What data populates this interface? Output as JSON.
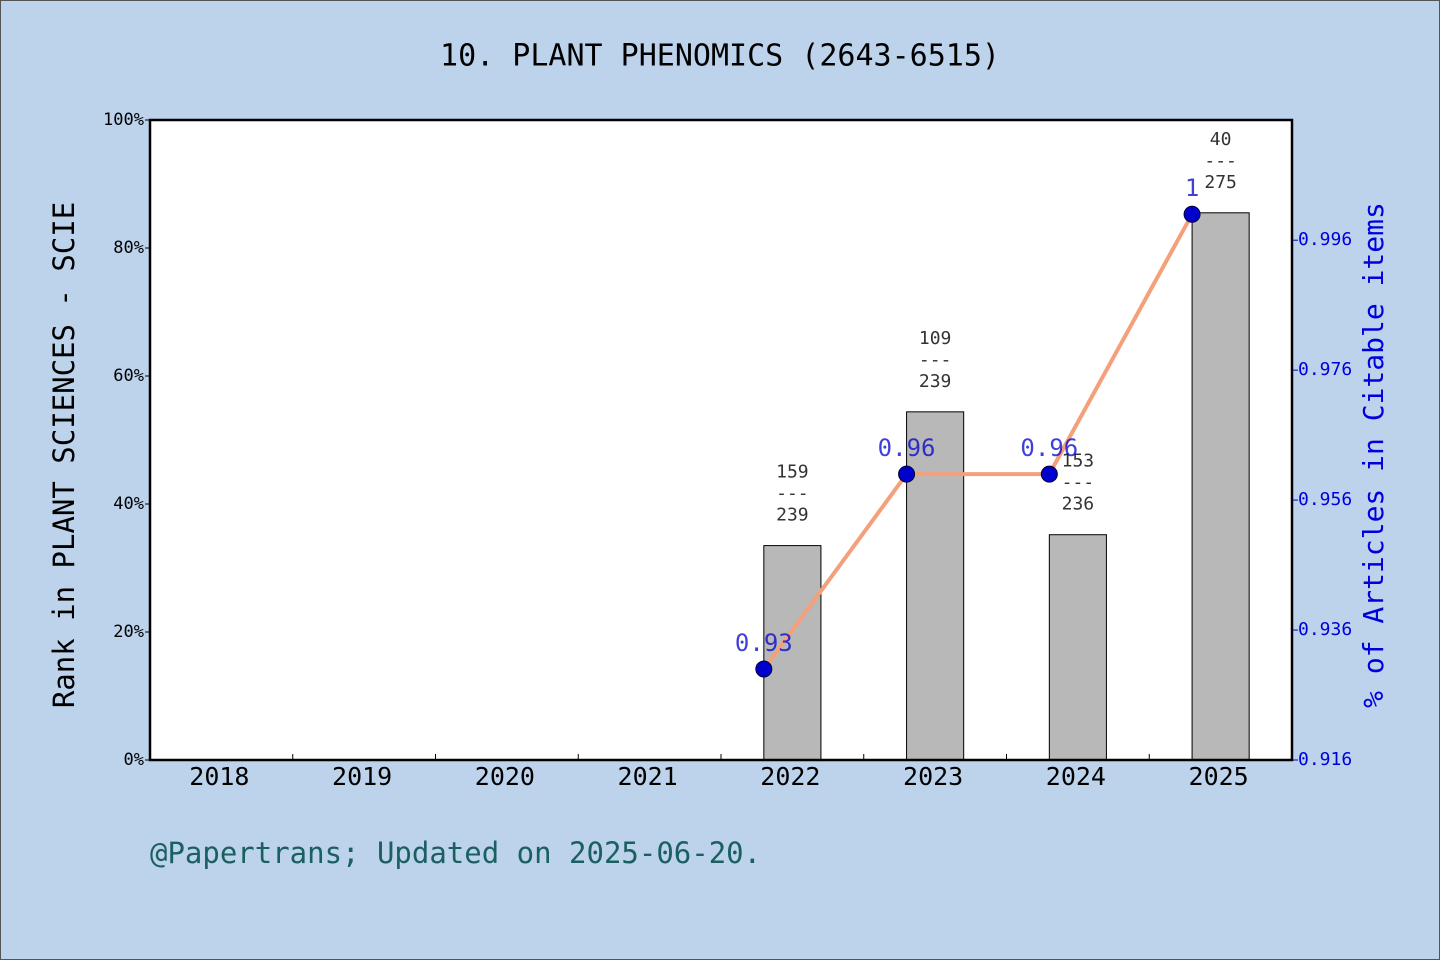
{
  "chart_data": {
    "type": "bar_line",
    "title": "10. PLANT PHENOMICS (2643-6515)",
    "ylabel": "Rank in PLANT SCIENCES - SCIE",
    "y2label": "% of Articles in Citable items",
    "footer": "@Papertrans; Updated on 2025-06-20.",
    "categories": [
      "2018",
      "2019",
      "2020",
      "2021",
      "2022",
      "2023",
      "2024",
      "2025"
    ],
    "series": [
      {
        "type": "bar",
        "color": "#b8b8b8",
        "values": [
          null,
          null,
          null,
          null,
          33.5,
          54.4,
          35.2,
          85.5
        ]
      },
      {
        "type": "line",
        "axis": "y2",
        "color": "#f4a07a",
        "marker_color": "#0000cc",
        "values": [
          null,
          null,
          null,
          null,
          0.93,
          0.96,
          0.96,
          1
        ]
      }
    ],
    "bar_labels": [
      null,
      null,
      null,
      null,
      [
        "159",
        "---",
        "239"
      ],
      [
        "109",
        "---",
        "239"
      ],
      [
        "153",
        "---",
        "236"
      ],
      [
        "40",
        "---",
        "275"
      ]
    ],
    "ylim": [
      0,
      100
    ],
    "yticks": [
      {
        "value": 0,
        "label": "0%"
      },
      {
        "value": 20,
        "label": "20%"
      },
      {
        "value": 40,
        "label": "40%"
      },
      {
        "value": 60,
        "label": "60%"
      },
      {
        "value": 80,
        "label": "80%"
      },
      {
        "value": 100,
        "label": "100%"
      }
    ],
    "y2lim": [
      0.916,
      1.0145
    ],
    "y2ticks": [
      0.916,
      0.936,
      0.956,
      0.976,
      0.996
    ]
  }
}
